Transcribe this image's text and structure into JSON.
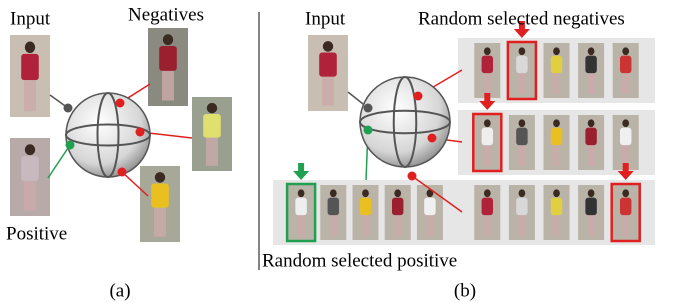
{
  "panel_a": {
    "input_label": "Input",
    "negatives_label": "Negatives",
    "positive_label": "Positive",
    "caption": "(a)"
  },
  "panel_b": {
    "input_label": "Input",
    "negatives_label": "Random selected negatives",
    "positive_label": "Random selected positive",
    "caption": "(b)"
  }
}
